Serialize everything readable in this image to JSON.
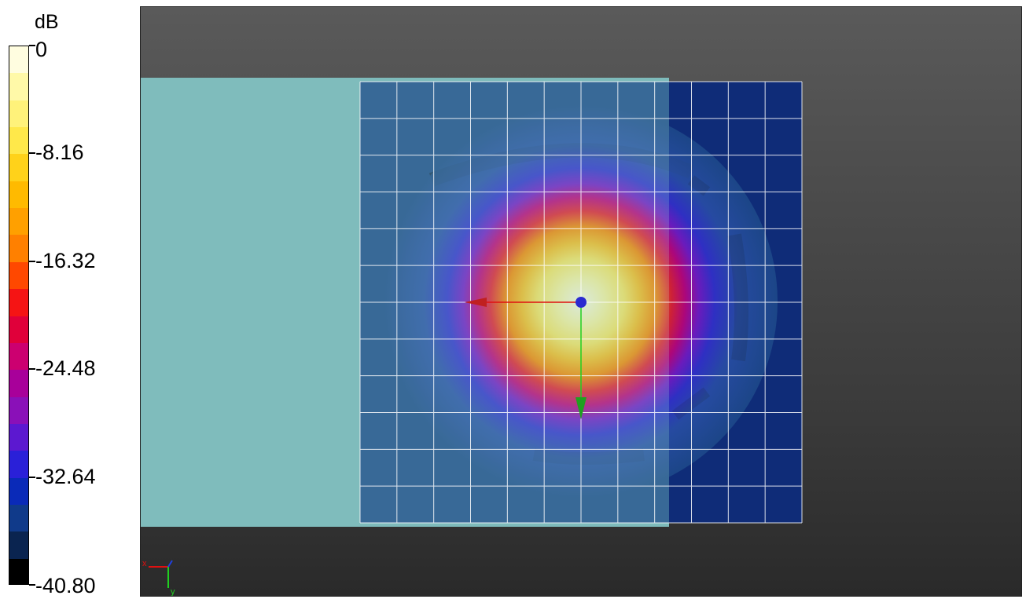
{
  "legend": {
    "unit": "dB",
    "ticks": [
      {
        "label": "0",
        "value": 0
      },
      {
        "label": "-8.16",
        "value": -8.16
      },
      {
        "label": "-16.32",
        "value": -16.32
      },
      {
        "label": "-24.48",
        "value": -24.48
      },
      {
        "label": "-32.64",
        "value": -32.64
      },
      {
        "label": "-40.80",
        "value": -40.8
      }
    ],
    "colors": [
      "#fffde0",
      "#fff9a8",
      "#fff27a",
      "#ffe84a",
      "#ffd21a",
      "#ffba00",
      "#ffa000",
      "#ff8000",
      "#ff4800",
      "#f51414",
      "#e0003a",
      "#cc0070",
      "#a8009a",
      "#8a10b8",
      "#5c18d0",
      "#2a20d8",
      "#0a2ab8",
      "#103a8a",
      "#0a2450",
      "#000000"
    ]
  },
  "viewport": {
    "colors": {
      "background_top": "#5a5a5a",
      "background_bottom": "#2a2a2a",
      "plane": "#7fbcbc",
      "grid": "#ffffff",
      "x_axis": "#e01010",
      "y_axis": "#20d020",
      "origin": "#2a2ad0"
    },
    "triad": {
      "x_label": "x",
      "y_label": "y"
    }
  }
}
